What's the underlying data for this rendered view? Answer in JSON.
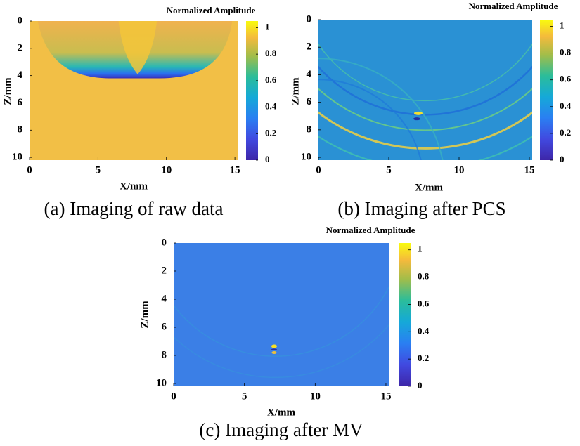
{
  "chart_data": [
    {
      "type": "heatmap",
      "caption": "(a) Imaging of raw data",
      "xlabel": "X/mm",
      "ylabel": "Z/mm",
      "colorbar_label": "Normalized Amplitude",
      "xlim": [
        0,
        15.2
      ],
      "xticks": [
        0,
        5,
        10,
        15
      ],
      "ylim": [
        0,
        10.2
      ],
      "yticks": [
        0,
        2,
        4,
        6,
        8,
        10
      ],
      "y_reversed": true,
      "clim": [
        0,
        1.05
      ],
      "cticks": [
        0,
        0.2,
        0.4,
        0.6,
        0.8,
        1
      ]
    },
    {
      "type": "heatmap",
      "caption": "(b) Imaging after PCS",
      "xlabel": "X/mm",
      "ylabel": "Z/mm",
      "colorbar_label": "Normalized Amplitude",
      "xlim": [
        0,
        15.2
      ],
      "xticks": [
        0,
        5,
        10,
        15
      ],
      "ylim": [
        0,
        10.2
      ],
      "yticks": [
        0,
        2,
        4,
        6,
        8,
        10
      ],
      "y_reversed": true,
      "clim": [
        0,
        1.05
      ],
      "cticks": [
        0,
        0.2,
        0.4,
        0.6,
        0.8,
        1
      ]
    },
    {
      "type": "heatmap",
      "caption": "(c) Imaging after MV",
      "xlabel": "X/mm",
      "ylabel": "Z/mm",
      "colorbar_label": "Normalized Amplitude",
      "xlim": [
        0,
        15.2
      ],
      "xticks": [
        0,
        5,
        10,
        15
      ],
      "ylim": [
        0,
        10.2
      ],
      "yticks": [
        0,
        2,
        4,
        6,
        8,
        10
      ],
      "y_reversed": true,
      "clim": [
        0,
        1.05
      ],
      "cticks": [
        0,
        0.2,
        0.4,
        0.6,
        0.8,
        1
      ]
    }
  ]
}
